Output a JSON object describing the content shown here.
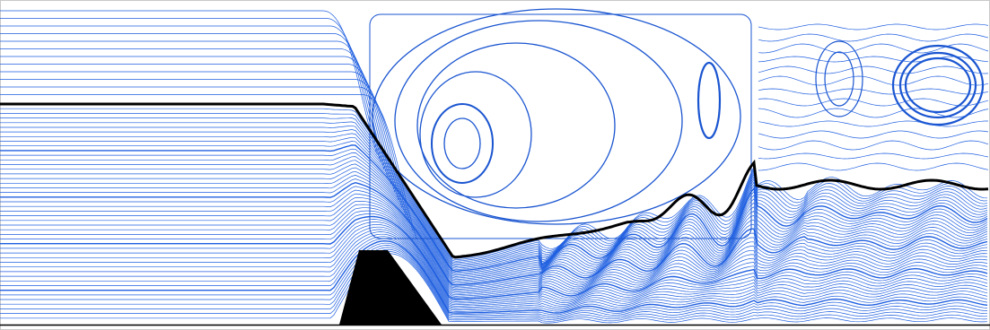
{
  "figure": {
    "kind": "streamline-flow-visualization",
    "colors": {
      "background": "#ffffff",
      "streamline": "#1f5fe0",
      "vortex_streamline": "#1a55d0",
      "dividing_streamline": "#000000",
      "obstacle": "#000000",
      "frame": "#c8c8c8"
    },
    "icons": {
      "obstacle": "trapezoid-obstacle"
    }
  }
}
